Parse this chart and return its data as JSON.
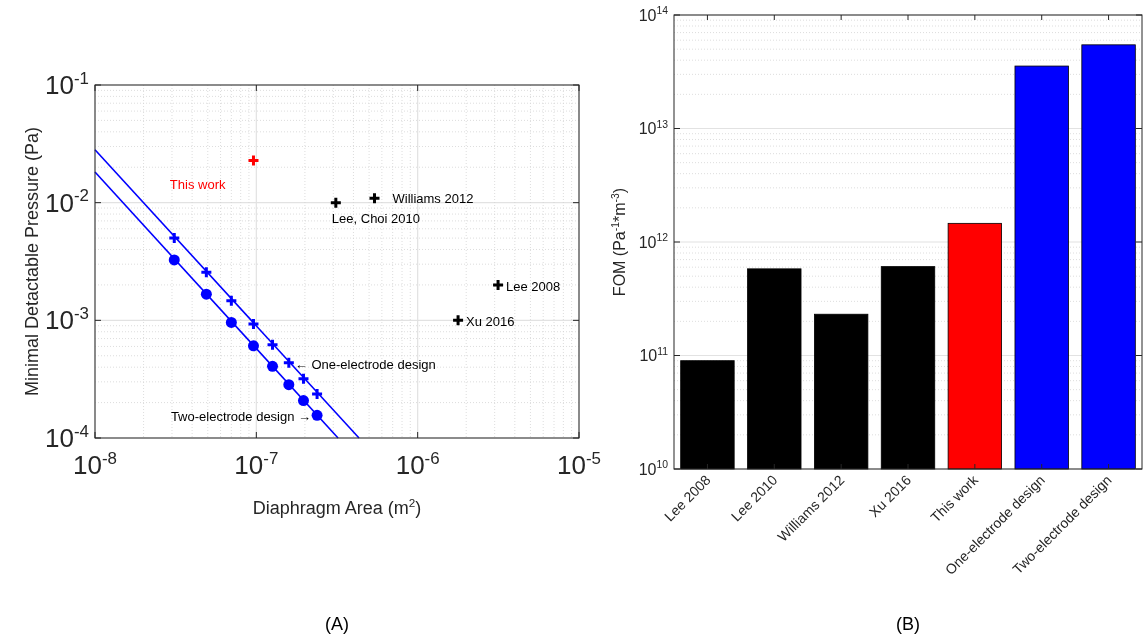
{
  "chart_data": [
    {
      "type": "scatter",
      "title": "(A)",
      "xlabel": "Diaphragm Area (m$^{2}$)",
      "ylabel": "Minimal Detactable Pressure (Pa)",
      "log": "xy",
      "grid": true,
      "xlim": [
        1e-08,
        1e-05
      ],
      "ylim": [
        0.0001,
        0.1
      ],
      "xticks": [
        {
          "value": 1e-08,
          "label": "10$^{-8}$"
        },
        {
          "value": 1e-07,
          "label": "10$^{-7}$"
        },
        {
          "value": 1e-06,
          "label": "10$^{-6}$"
        },
        {
          "value": 1e-05,
          "label": "10$^{-5}$"
        }
      ],
      "yticks": [
        {
          "value": 0.0001,
          "label": "10$^{-4}$"
        },
        {
          "value": 0.001,
          "label": "10$^{-3}$"
        },
        {
          "value": 0.01,
          "label": "10$^{-2}$"
        },
        {
          "value": 0.1,
          "label": "10$^{-1}$"
        }
      ],
      "series": [
        {
          "type": "line",
          "color": "#0000ff",
          "marker": "none",
          "x": [
            1e-08,
            4.33e-07
          ],
          "values": [
            0.0282,
            0.0001
          ]
        },
        {
          "type": "line",
          "color": "#0000ff",
          "marker": "none",
          "x": [
            1e-08,
            3.21e-07
          ],
          "values": [
            0.0182,
            0.0001
          ]
        },
        {
          "color": "#0000ff",
          "marker": "cross",
          "x": [
            3.1e-08,
            4.9e-08,
            7e-08,
            9.6e-08,
            1.26e-07,
            1.59e-07,
            1.96e-07,
            2.38e-07
          ],
          "values": [
            0.005,
            0.00256,
            0.00147,
            0.00093,
            0.00062,
            0.000435,
            0.000319,
            0.000237
          ]
        },
        {
          "color": "#0000ff",
          "marker": "circle",
          "x": [
            3.1e-08,
            4.9e-08,
            7e-08,
            9.6e-08,
            1.26e-07,
            1.59e-07,
            1.96e-07,
            2.38e-07
          ],
          "values": [
            0.00326,
            0.00167,
            0.00096,
            0.000607,
            0.000407,
            0.000284,
            0.000208,
            0.000156
          ]
        },
        {
          "name": "This work",
          "color": "#ff0000",
          "marker": "cross",
          "x": [
            9.6e-08
          ],
          "values": [
            0.0228
          ]
        },
        {
          "color": "#000000",
          "marker": "cross",
          "x": [
            5.4e-07,
            3.11e-07,
            3.15e-06,
            1.78e-06
          ],
          "values": [
            0.0109,
            0.01,
            0.002,
            0.001
          ]
        }
      ],
      "annotations": [
        {
          "text": "Williams 2012",
          "x": 5.4e-07,
          "y": 0.0109
        },
        {
          "text": "Lee, Choi 2010",
          "x": 3.11e-07,
          "y": 0.01
        },
        {
          "text": "Lee 2008",
          "x": 3.15e-06,
          "y": 0.002
        },
        {
          "text": "Xu 2016",
          "x": 1.78e-06,
          "y": 0.001
        },
        {
          "text": "← One-electrode design",
          "x": 1.59e-07,
          "y": 0.000435
        },
        {
          "text": "Two-electrode design →",
          "x": 2.38e-07,
          "y": 0.000156
        }
      ]
    },
    {
      "type": "bar",
      "title": "(B)",
      "ylabel": "FOM (Pa$^{-1}$*m$^{-3}$)",
      "log": "y",
      "grid": "y",
      "categories": [
        "Lee 2008",
        "Lee 2010",
        "Williams 2012",
        "Xu 2016",
        "This work",
        "One-electrode design",
        "Two-electrode design"
      ],
      "values": [
        90000000000.0,
        580000000000.0,
        231000000000.0,
        607000000000.0,
        1460000000000.0,
        35500000000000.0,
        54600000000000.0
      ],
      "colors": [
        "#000000",
        "#000000",
        "#000000",
        "#000000",
        "#ff0000",
        "#0000ff",
        "#0000ff"
      ],
      "ylim": [
        10000000000.0,
        100000000000000.0
      ],
      "yticks": [
        {
          "value": 10000000000.0,
          "label": "10$^{10}$"
        },
        {
          "value": 100000000000.0,
          "label": "10$^{11}$"
        },
        {
          "value": 1000000000000.0,
          "label": "10$^{12}$"
        },
        {
          "value": 10000000000000.0,
          "label": "10$^{13}$"
        },
        {
          "value": 100000000000000.0,
          "label": "10$^{14}$"
        }
      ]
    }
  ]
}
